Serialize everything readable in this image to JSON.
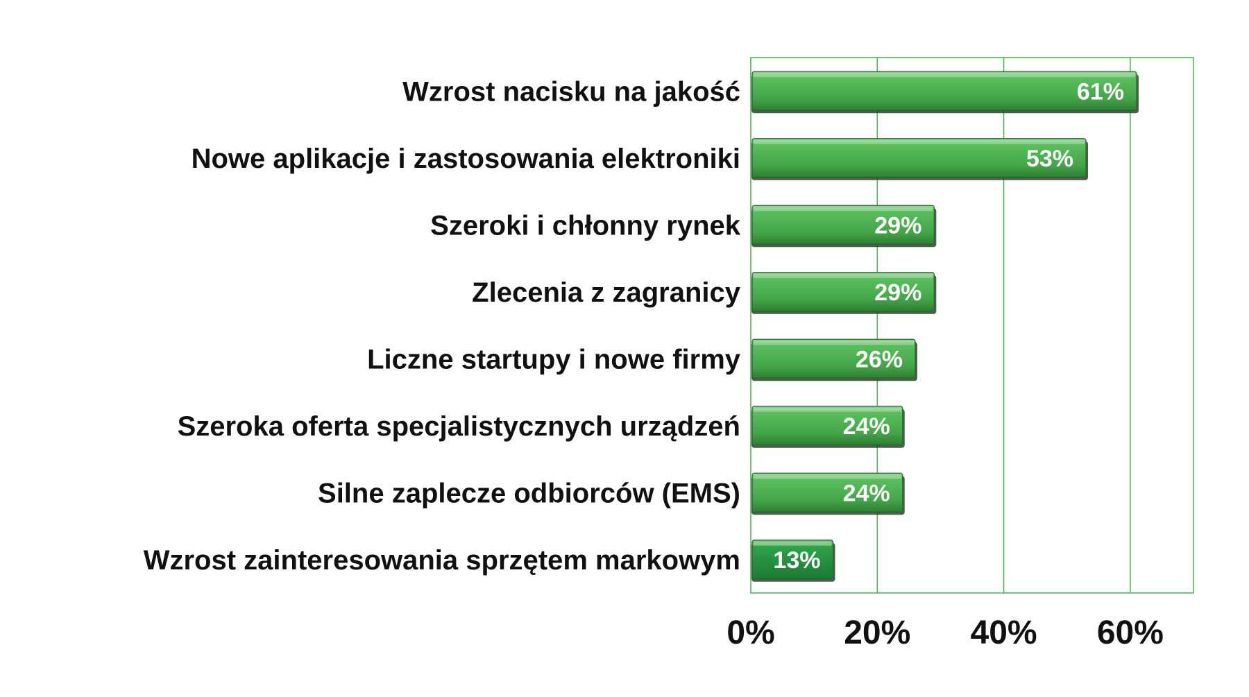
{
  "chart_data": {
    "type": "bar",
    "orientation": "horizontal",
    "title": "",
    "xlabel": "",
    "ylabel": "",
    "categories": [
      "Wzrost nacisku na jakość",
      "Nowe aplikacje i zastosowania elektroniki",
      "Szeroki i chłonny rynek",
      "Zlecenia z zagranicy",
      "Liczne startupy i nowe firmy",
      "Szeroka oferta specjalistycznych urządzeń",
      "Silne zaplecze odbiorców (EMS)",
      "Wzrost zainteresowania sprzętem markowym"
    ],
    "values": [
      61,
      53,
      29,
      29,
      26,
      24,
      24,
      13
    ],
    "value_labels": [
      "61%",
      "53%",
      "29%",
      "29%",
      "26%",
      "24%",
      "24%",
      "13%"
    ],
    "xlim": [
      0,
      70
    ],
    "x_ticks": [
      0,
      20,
      40,
      60
    ],
    "x_tick_labels": [
      "0%",
      "20%",
      "40%",
      "60%"
    ],
    "grid": "vertical",
    "legend": "none",
    "colors": {
      "bar_fill": "#4caf50",
      "bar_top": "#7bcd7b",
      "bar_dark": "#1f6b2a",
      "bar_shadow": "#3a3a3a",
      "grid": "#4caf50",
      "axis_text": "#111111",
      "value_text": "#ffffff"
    }
  }
}
